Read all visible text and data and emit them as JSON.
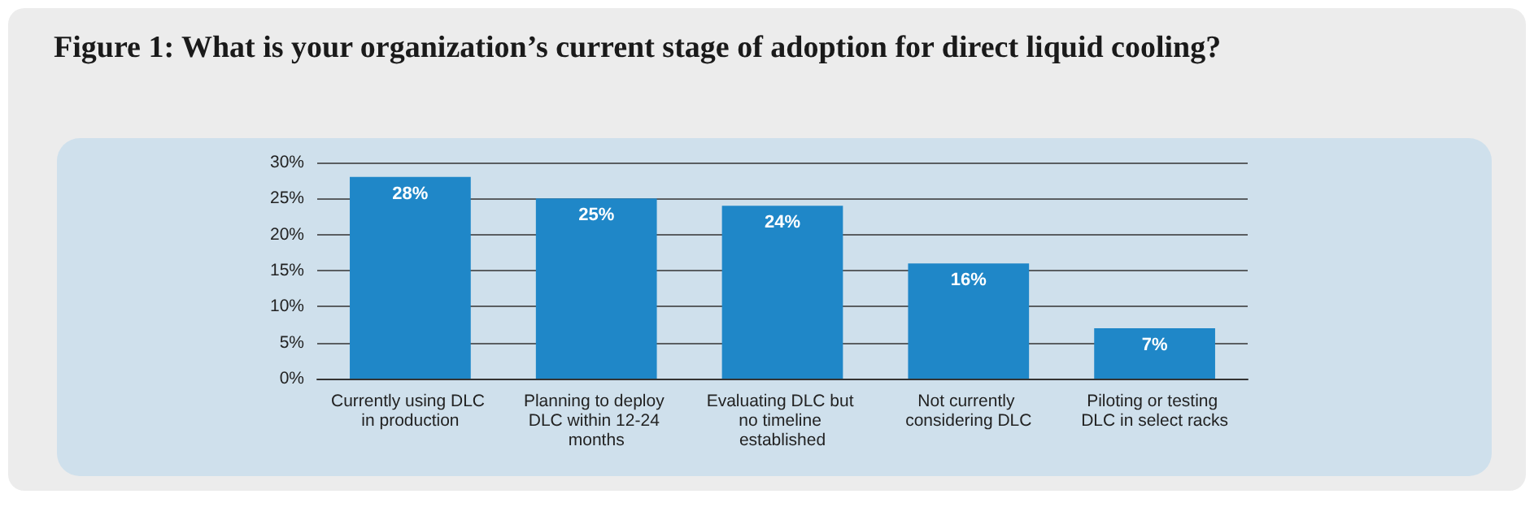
{
  "chart_data": {
    "type": "bar",
    "title": "Figure 1: What is your organization’s current stage of adoption for direct liquid cooling?",
    "categories": [
      "Currently using DLC in production",
      "Planning to deploy DLC within 12-24 months",
      "Evaluating DLC but no timeline established",
      "Not currently considering DLC",
      "Piloting or testing DLC in select racks"
    ],
    "values": [
      28,
      25,
      24,
      16,
      7
    ],
    "value_labels": [
      "28%",
      "25%",
      "24%",
      "16%",
      "7%"
    ],
    "color": "#1f87c8",
    "ylim": [
      0,
      30
    ],
    "yticks": [
      {
        "value": 0,
        "label": "0%"
      },
      {
        "value": 5,
        "label": "5%"
      },
      {
        "value": 10,
        "label": "10%"
      },
      {
        "value": 15,
        "label": "15%"
      },
      {
        "value": 20,
        "label": "20%"
      },
      {
        "value": 25,
        "label": "25%"
      },
      {
        "value": 30,
        "label": "30%"
      }
    ],
    "grid": "y"
  }
}
